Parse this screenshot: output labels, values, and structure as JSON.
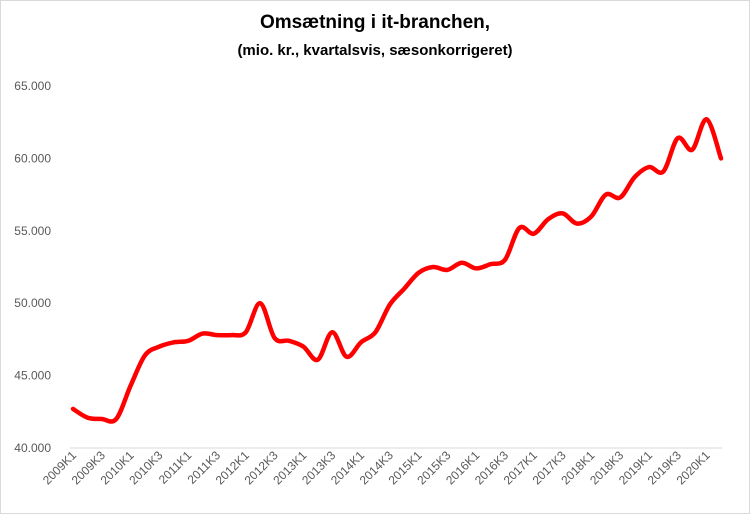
{
  "chart_data": {
    "type": "line",
    "title": "Omsætning i it-branchen,",
    "subtitle": "(mio. kr., kvartalsvis, sæsonkorrigeret)",
    "xlabel": "",
    "ylabel": "",
    "ylim": [
      40000,
      65000
    ],
    "yticks": [
      "40.000",
      "45.000",
      "50.000",
      "55.000",
      "60.000",
      "65.000"
    ],
    "ytick_values": [
      40000,
      45000,
      50000,
      55000,
      60000,
      65000
    ],
    "grid": false,
    "line_color": "#ff0000",
    "categories": [
      "2009K1",
      "2009K2",
      "2009K3",
      "2009K4",
      "2010K1",
      "2010K2",
      "2010K3",
      "2010K4",
      "2011K1",
      "2011K2",
      "2011K3",
      "2011K4",
      "2012K1",
      "2012K2",
      "2012K3",
      "2012K4",
      "2013K1",
      "2013K2",
      "2013K3",
      "2013K4",
      "2014K1",
      "2014K2",
      "2014K3",
      "2014K4",
      "2015K1",
      "2015K2",
      "2015K3",
      "2015K4",
      "2016K1",
      "2016K2",
      "2016K3",
      "2016K4",
      "2017K1",
      "2017K2",
      "2017K3",
      "2017K4",
      "2018K1",
      "2018K2",
      "2018K3",
      "2018K4",
      "2019K1",
      "2019K2",
      "2019K3",
      "2019K4",
      "2020K1",
      "2020K2"
    ],
    "x_tick_labels": [
      "2009K1",
      "2009K3",
      "2010K1",
      "2010K3",
      "2011K1",
      "2011K3",
      "2012K1",
      "2012K3",
      "2013K1",
      "2013K3",
      "2014K1",
      "2014K3",
      "2015K1",
      "2015K3",
      "2016K1",
      "2016K3",
      "2017K1",
      "2017K3",
      "2018K1",
      "2018K3",
      "2019K1",
      "2019K3",
      "2020K1"
    ],
    "series": [
      {
        "values": [
          42700,
          42100,
          42000,
          42000,
          44300,
          46400,
          47000,
          47300,
          47400,
          47900,
          47800,
          47800,
          48000,
          50000,
          47600,
          47400,
          47000,
          46100,
          48000,
          46300,
          47300,
          48000,
          49900,
          51000,
          52100,
          52500,
          52300,
          52800,
          52400,
          52700,
          53000,
          55200,
          54800,
          55800,
          56200,
          55500,
          56000,
          57500,
          57300,
          58700,
          59400,
          59100,
          61400,
          60600,
          62700,
          60000
        ]
      }
    ]
  }
}
